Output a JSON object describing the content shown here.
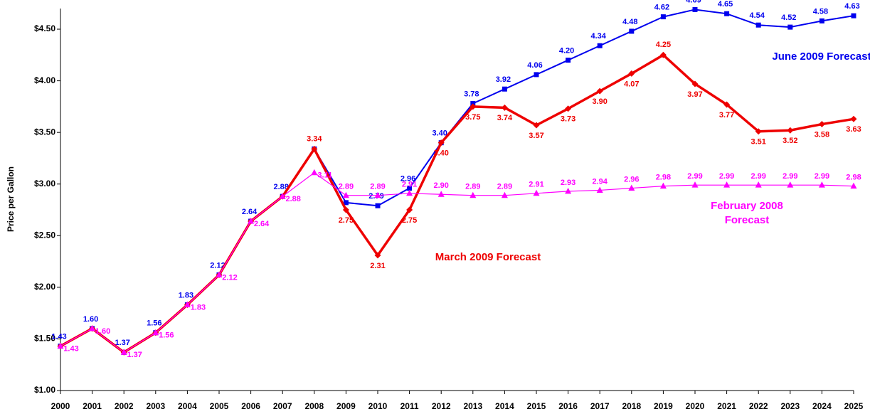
{
  "chart_data": {
    "type": "line",
    "ylabel": "Price per Gallon",
    "categories": [
      "2000",
      "2001",
      "2002",
      "2003",
      "2004",
      "2005",
      "2006",
      "2007",
      "2008",
      "2009",
      "2010",
      "2011",
      "2012",
      "2013",
      "2014",
      "2015",
      "2016",
      "2017",
      "2018",
      "2019",
      "2020",
      "2021",
      "2022",
      "2023",
      "2024",
      "2025"
    ],
    "ylim": [
      1,
      4.7
    ],
    "yticks": [
      {
        "value": 1,
        "label": "$1.00"
      },
      {
        "value": 1.5,
        "label": "$1.50"
      },
      {
        "value": 2,
        "label": "$2.00"
      },
      {
        "value": 2.5,
        "label": "$2.50"
      },
      {
        "value": 3,
        "label": "$3.00"
      },
      {
        "value": 3.5,
        "label": "$3.50"
      },
      {
        "value": 4,
        "label": "$4.00"
      },
      {
        "value": 4.5,
        "label": "$4.50"
      }
    ],
    "grid": false,
    "series": [
      {
        "name": "June 2009 Forecast",
        "color": "#0000ee",
        "marker": "square",
        "values": [
          1.43,
          1.6,
          1.37,
          1.56,
          1.83,
          2.12,
          2.64,
          2.88,
          3.34,
          2.82,
          2.79,
          2.96,
          3.4,
          3.78,
          3.92,
          4.06,
          4.2,
          4.34,
          4.48,
          4.62,
          4.69,
          4.65,
          4.54,
          4.52,
          4.58,
          4.63
        ],
        "value_labels": [
          "1.43",
          "1.60",
          "1.37",
          "1.56",
          "1.83",
          "2.12",
          "2.64",
          "2.88",
          null,
          null,
          "2.79",
          "2.96",
          "3.40",
          "3.78",
          "3.92",
          "4.06",
          "4.20",
          "4.34",
          "4.48",
          "4.62",
          "4.69",
          "4.65",
          "4.54",
          "4.52",
          "4.58",
          "4.63"
        ]
      },
      {
        "name": "March 2009 Forecast",
        "color": "#ee0000",
        "marker": "diamond",
        "values": [
          1.43,
          1.6,
          1.37,
          1.56,
          1.83,
          2.12,
          2.64,
          2.88,
          3.34,
          2.75,
          2.31,
          2.75,
          3.4,
          3.75,
          3.74,
          3.57,
          3.73,
          3.9,
          4.07,
          4.25,
          3.97,
          3.77,
          3.51,
          3.52,
          3.58,
          3.63
        ],
        "value_labels": [
          null,
          null,
          null,
          null,
          null,
          null,
          null,
          null,
          "3.34",
          "2.75",
          "2.31",
          "2.75",
          "3.40",
          "3.75",
          "3.74",
          "3.57",
          "3.73",
          "3.90",
          "4.07",
          "4.25",
          "3.97",
          "3.77",
          "3.51",
          "3.52",
          "3.58",
          "3.63"
        ]
      },
      {
        "name": "February 2008 Forecast",
        "color": "#ff00ff",
        "marker": "triangle",
        "values": [
          1.43,
          1.6,
          1.37,
          1.56,
          1.83,
          2.12,
          2.64,
          2.88,
          3.11,
          2.89,
          2.89,
          2.91,
          2.9,
          2.89,
          2.89,
          2.91,
          2.93,
          2.94,
          2.96,
          2.98,
          2.99,
          2.99,
          2.99,
          2.99,
          2.99,
          2.98
        ],
        "value_labels": [
          "1.43",
          "1.60",
          "1.37",
          "1.56",
          "1.83",
          "2.12",
          "2.64",
          "2.88",
          "3.11",
          "2.89",
          "2.89",
          "2.91",
          "2.90",
          "2.89",
          "2.89",
          "2.91",
          "2.93",
          "2.94",
          "2.96",
          "2.98",
          "2.99",
          "2.99",
          "2.99",
          "2.99",
          "2.99",
          "2.98"
        ]
      }
    ]
  }
}
